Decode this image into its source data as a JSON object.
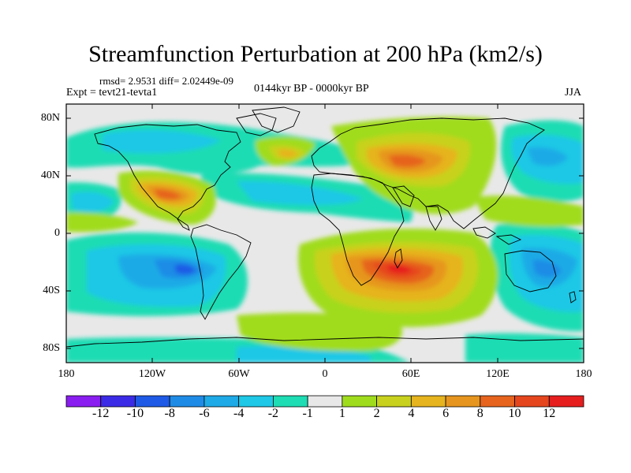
{
  "title": "Streamfunction Perturbation at 200 hPa (km2/s)",
  "stats": "rmsd= 2.9531 diff= 2.02449e-09",
  "experiment": "Expt = tevt21-tevta1",
  "period": "0144kyr BP - 0000kyr BP",
  "season": "JJA",
  "y_ticks": [
    "80N",
    "40N",
    "0",
    "40S",
    "80S"
  ],
  "x_ticks": [
    "180",
    "120W",
    "60W",
    "0",
    "60E",
    "120E",
    "180"
  ],
  "colorbar": {
    "labels": [
      "-12",
      "-10",
      "-8",
      "-6",
      "-4",
      "-2",
      "-1",
      "1",
      "2",
      "4",
      "6",
      "8",
      "10",
      "12"
    ],
    "colors": [
      "#8a1ef0",
      "#3c2be6",
      "#1e5ae6",
      "#1e8ce6",
      "#1eaae6",
      "#1ec8e6",
      "#1edcb4",
      "#e8e8e8",
      "#a0dc1e",
      "#c8d21e",
      "#e6b41e",
      "#e6961e",
      "#e6641e",
      "#e6461e",
      "#e61e1e"
    ]
  }
}
